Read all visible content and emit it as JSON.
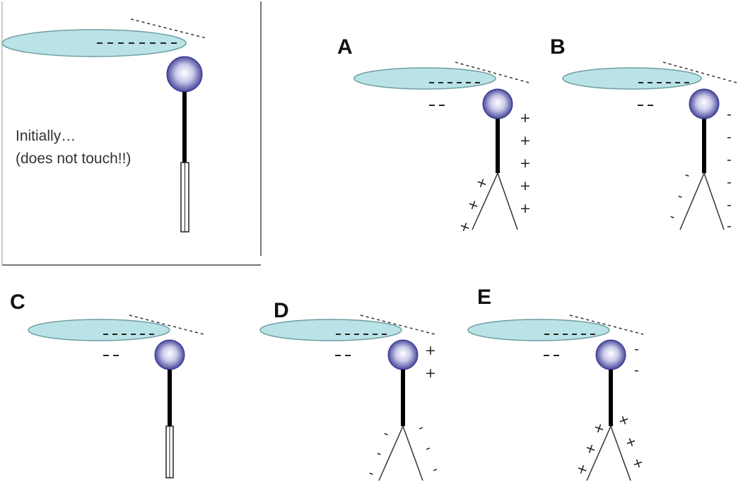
{
  "intro": {
    "caption_line1": "Initially…",
    "caption_line2": "(does not touch!!)"
  },
  "panels": [
    {
      "id": "A",
      "label": "A",
      "stem": "open",
      "left_charges": "+",
      "right_charges": "+"
    },
    {
      "id": "B",
      "label": "B",
      "stem": "open",
      "left_charges": "-",
      "right_charges": "-"
    },
    {
      "id": "C",
      "label": "C",
      "stem": "closed",
      "left_charges": "",
      "right_charges": ""
    },
    {
      "id": "D",
      "label": "D",
      "stem": "open",
      "left_charges": "-",
      "right_charges": "-"
    },
    {
      "id": "E",
      "label": "E",
      "stem": "open",
      "left_charges": "+",
      "right_charges": "+"
    }
  ],
  "colors": {
    "rod_fill": "#b9e3e6",
    "rod_stroke": "#6f9ea2",
    "ball_edge": "#2f2f8c",
    "ball_highlight": "#ffffff",
    "stem": "#000000"
  }
}
